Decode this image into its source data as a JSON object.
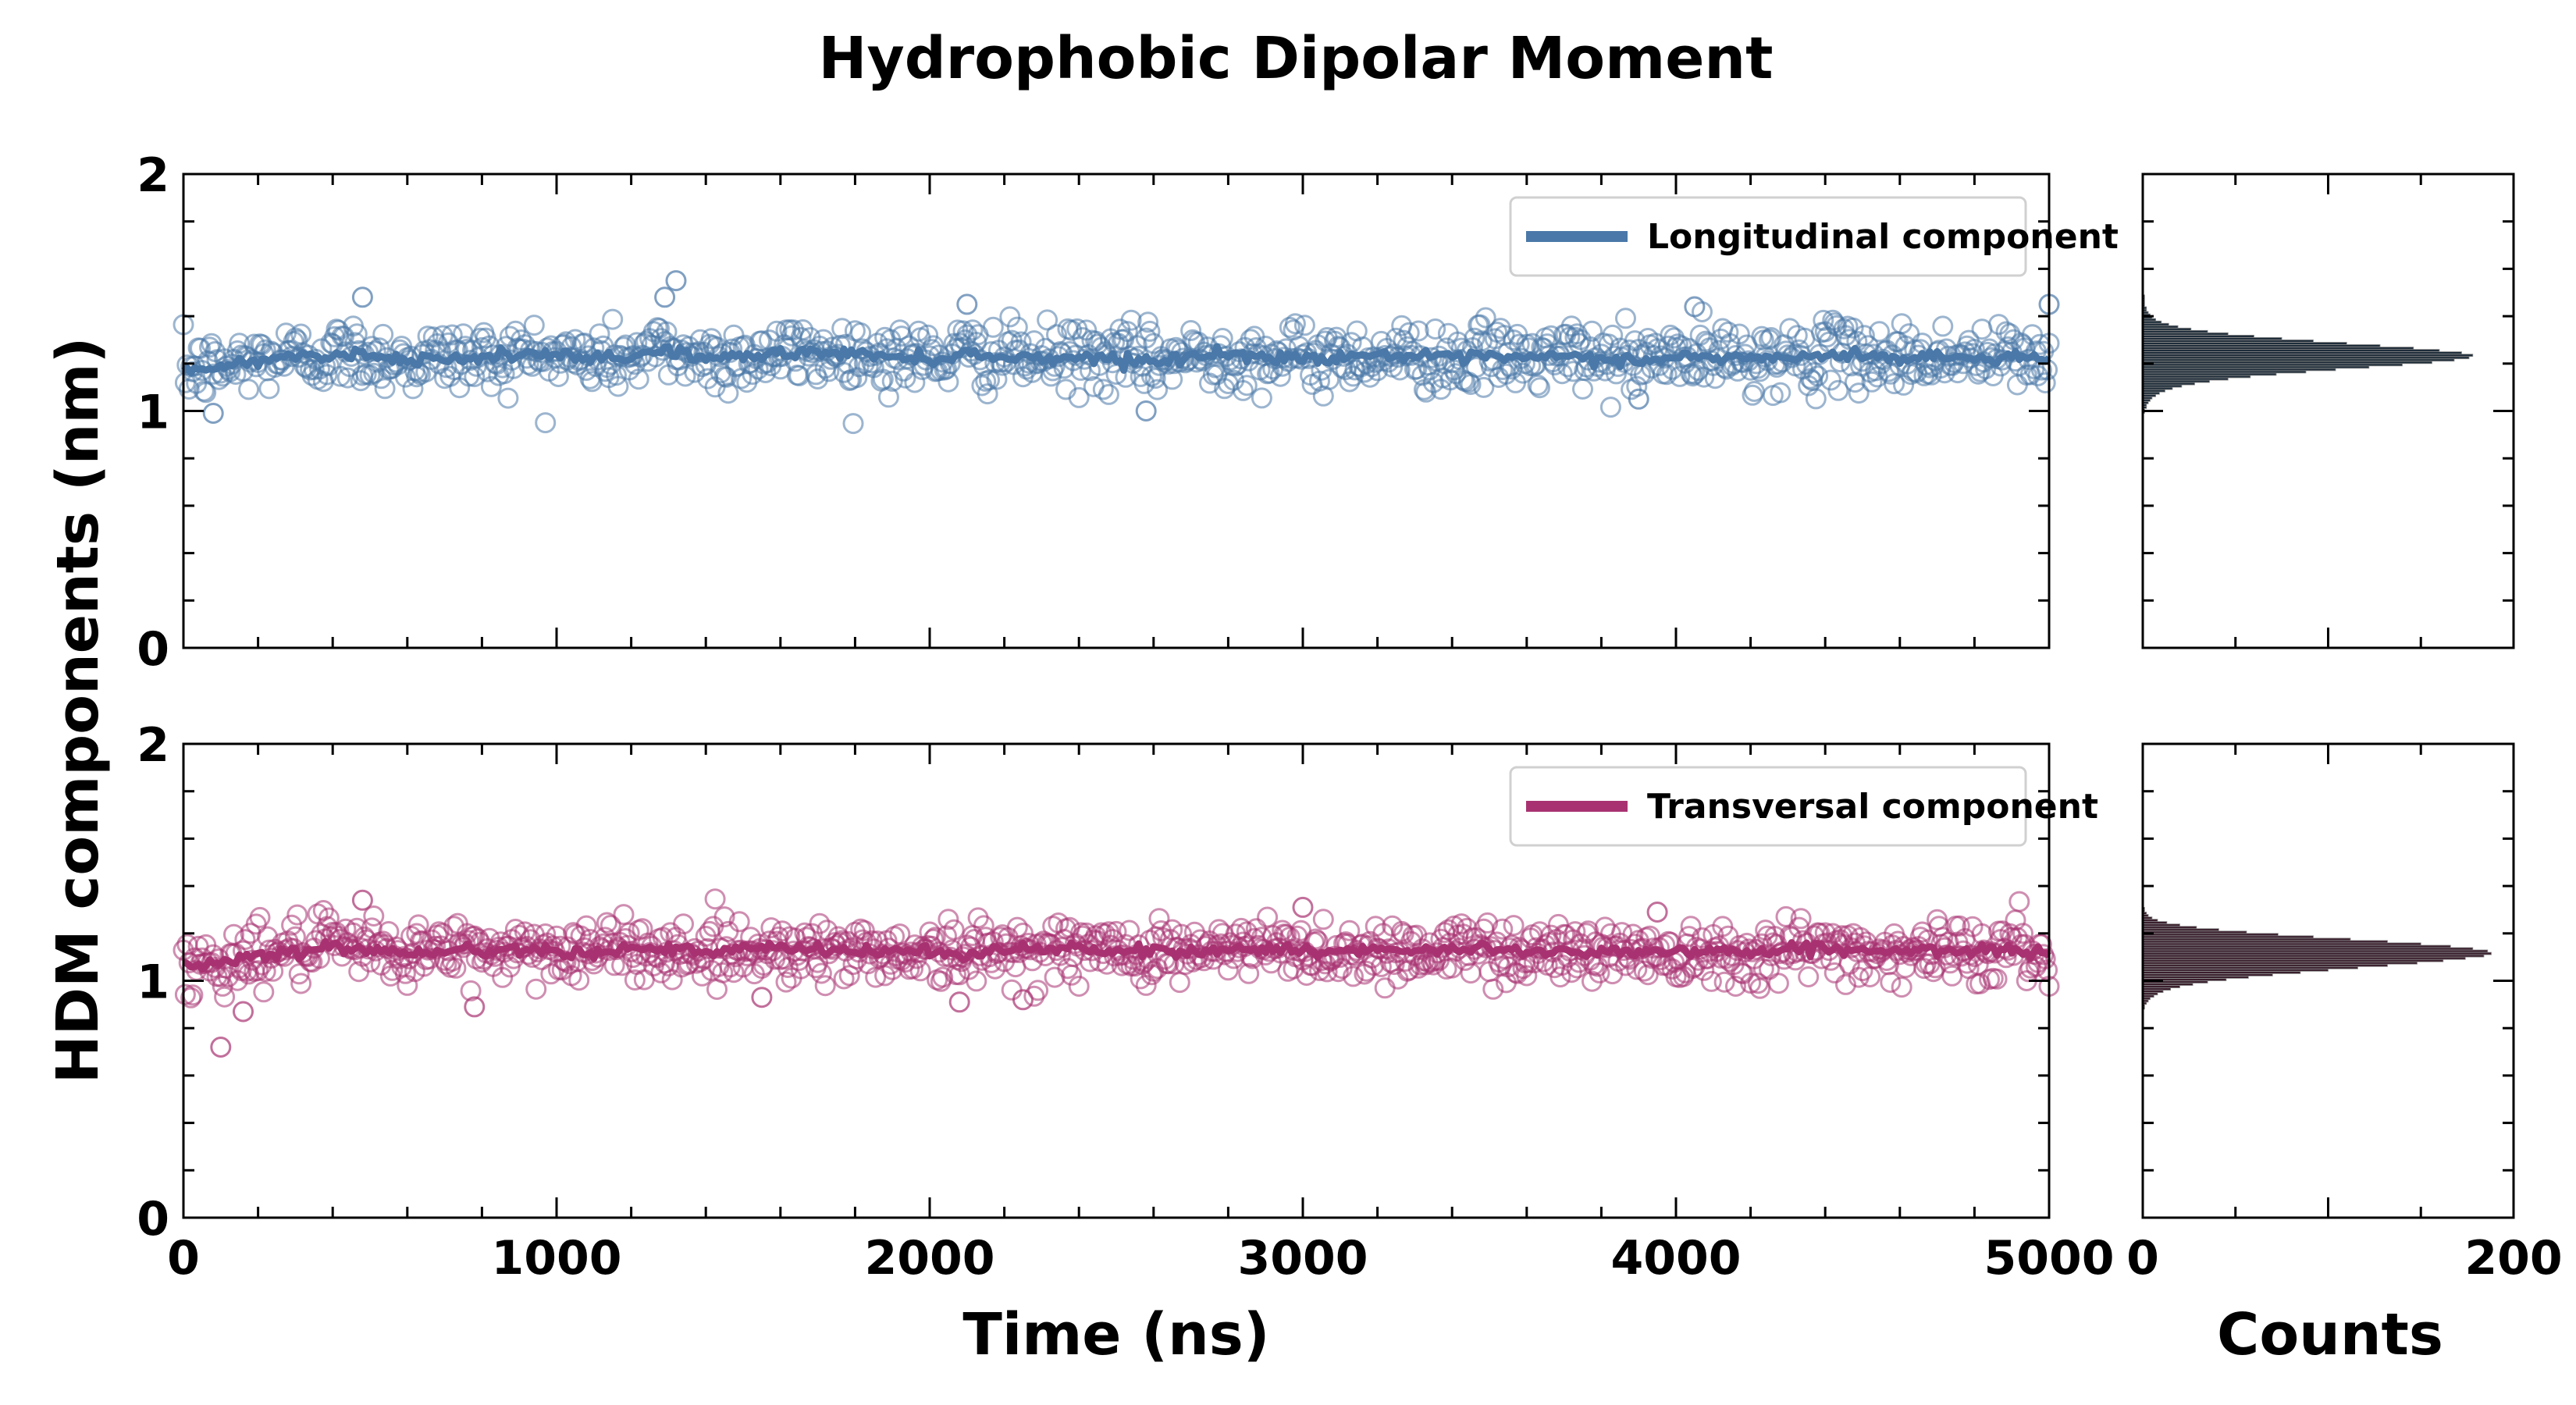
{
  "title": "Hydrophobic Dipolar Moment",
  "chart_data": [
    {
      "type": "scatter",
      "name": "longitudinal-timeseries",
      "xlabel": "Time (ns)",
      "ylabel": "HDM components (nm)",
      "xlim": [
        0,
        5000
      ],
      "ylim": [
        0,
        2
      ],
      "xticks": [
        "0",
        "1000",
        "2000",
        "3000",
        "4000",
        "5000"
      ],
      "yticks": [
        "0",
        "1",
        "2"
      ],
      "legend": "top-right",
      "series": [
        {
          "name": "Longitudinal component",
          "color": "#4a78a8",
          "mean": 1.23,
          "sd": 0.07,
          "line_x": [
            0,
            100,
            200,
            300,
            400,
            500,
            600,
            700,
            800,
            900,
            1000,
            1100,
            1200,
            1300,
            1400,
            1500,
            1600,
            1700,
            1800,
            1900,
            2000,
            2100,
            2200,
            2300,
            2400,
            2500,
            2600,
            2700,
            2800,
            2900,
            3000,
            3100,
            3200,
            3300,
            3400,
            3500,
            3600,
            3700,
            3800,
            3900,
            4000,
            4100,
            4200,
            4300,
            4400,
            4500,
            4600,
            4700,
            4800,
            4900,
            5000
          ],
          "line_y": [
            1.17,
            1.18,
            1.22,
            1.23,
            1.24,
            1.24,
            1.21,
            1.23,
            1.22,
            1.24,
            1.23,
            1.22,
            1.23,
            1.26,
            1.22,
            1.23,
            1.24,
            1.25,
            1.24,
            1.23,
            1.22,
            1.24,
            1.23,
            1.22,
            1.23,
            1.22,
            1.21,
            1.23,
            1.24,
            1.23,
            1.22,
            1.23,
            1.24,
            1.23,
            1.22,
            1.23,
            1.22,
            1.23,
            1.22,
            1.21,
            1.23,
            1.22,
            1.23,
            1.22,
            1.23,
            1.24,
            1.22,
            1.23,
            1.22,
            1.23,
            1.22
          ],
          "outliers": [
            [
              80,
              0.99
            ],
            [
              480,
              1.48
            ],
            [
              1320,
              1.55
            ],
            [
              1290,
              1.48
            ],
            [
              2580,
              1.0
            ],
            [
              2100,
              1.45
            ],
            [
              4050,
              1.44
            ],
            [
              5000,
              1.45
            ],
            [
              3900,
              1.05
            ]
          ]
        }
      ]
    },
    {
      "type": "scatter",
      "name": "transversal-timeseries",
      "xlabel": "Time (ns)",
      "ylabel": "HDM components (nm)",
      "xlim": [
        0,
        5000
      ],
      "ylim": [
        0,
        2
      ],
      "xticks": [
        "0",
        "1000",
        "2000",
        "3000",
        "4000",
        "5000"
      ],
      "yticks": [
        "0",
        "1",
        "2"
      ],
      "legend": "top-right",
      "series": [
        {
          "name": "Transversal component",
          "color": "#a83271",
          "mean": 1.13,
          "sd": 0.065,
          "line_x": [
            0,
            100,
            200,
            300,
            400,
            500,
            600,
            700,
            800,
            900,
            1000,
            1100,
            1200,
            1300,
            1400,
            1500,
            1600,
            1700,
            1800,
            1900,
            2000,
            2100,
            2200,
            2300,
            2400,
            2500,
            2600,
            2700,
            2800,
            2900,
            3000,
            3100,
            3200,
            3300,
            3400,
            3500,
            3600,
            3700,
            3800,
            3900,
            4000,
            4100,
            4200,
            4300,
            4400,
            4500,
            4600,
            4700,
            4800,
            4900,
            5000
          ],
          "line_y": [
            1.06,
            1.08,
            1.11,
            1.13,
            1.14,
            1.13,
            1.12,
            1.13,
            1.12,
            1.14,
            1.13,
            1.12,
            1.14,
            1.13,
            1.12,
            1.13,
            1.14,
            1.13,
            1.12,
            1.13,
            1.12,
            1.11,
            1.13,
            1.14,
            1.13,
            1.12,
            1.13,
            1.12,
            1.13,
            1.14,
            1.13,
            1.12,
            1.13,
            1.12,
            1.13,
            1.14,
            1.12,
            1.13,
            1.12,
            1.13,
            1.12,
            1.13,
            1.12,
            1.13,
            1.14,
            1.13,
            1.12,
            1.13,
            1.12,
            1.13,
            1.11
          ],
          "outliers": [
            [
              100,
              0.72
            ],
            [
              480,
              1.34
            ],
            [
              160,
              0.87
            ],
            [
              780,
              0.89
            ],
            [
              1550,
              0.93
            ],
            [
              2080,
              0.91
            ],
            [
              3000,
              1.31
            ],
            [
              3950,
              1.29
            ],
            [
              2250,
              0.92
            ]
          ]
        }
      ]
    },
    {
      "type": "bar",
      "orientation": "horizontal",
      "name": "longitudinal-histogram",
      "xlabel": "Counts",
      "xlim": [
        0,
        200
      ],
      "ylim": [
        0,
        2
      ],
      "xticks": [
        "0",
        "200"
      ],
      "color": "#1f2d3a",
      "bin_width": 0.01,
      "bins": [
        0.99,
        1.0,
        1.01,
        1.02,
        1.03,
        1.04,
        1.05,
        1.06,
        1.07,
        1.08,
        1.09,
        1.1,
        1.11,
        1.12,
        1.13,
        1.14,
        1.15,
        1.16,
        1.17,
        1.18,
        1.19,
        1.2,
        1.21,
        1.22,
        1.23,
        1.24,
        1.25,
        1.26,
        1.27,
        1.28,
        1.29,
        1.3,
        1.31,
        1.32,
        1.33,
        1.34,
        1.35,
        1.36,
        1.37,
        1.38,
        1.39,
        1.4,
        1.41,
        1.42,
        1.43,
        1.44,
        1.45,
        1.46,
        1.47,
        1.48
      ],
      "values": [
        1,
        1,
        2,
        2,
        3,
        4,
        5,
        7,
        9,
        12,
        16,
        21,
        28,
        36,
        46,
        58,
        72,
        88,
        104,
        122,
        140,
        156,
        168,
        176,
        178,
        172,
        160,
        146,
        128,
        110,
        92,
        75,
        60,
        46,
        35,
        26,
        19,
        14,
        10,
        7,
        5,
        4,
        3,
        2,
        2,
        1,
        1,
        1,
        1,
        1
      ]
    },
    {
      "type": "bar",
      "orientation": "horizontal",
      "name": "transversal-histogram",
      "xlabel": "Counts",
      "xlim": [
        0,
        200
      ],
      "ylim": [
        0,
        2
      ],
      "xticks": [
        "0",
        "200"
      ],
      "color": "#3a1f2d",
      "bin_width": 0.01,
      "bins": [
        0.88,
        0.89,
        0.9,
        0.91,
        0.92,
        0.93,
        0.94,
        0.95,
        0.96,
        0.97,
        0.98,
        0.99,
        1.0,
        1.01,
        1.02,
        1.03,
        1.04,
        1.05,
        1.06,
        1.07,
        1.08,
        1.09,
        1.1,
        1.11,
        1.12,
        1.13,
        1.14,
        1.15,
        1.16,
        1.17,
        1.18,
        1.19,
        1.2,
        1.21,
        1.22,
        1.23,
        1.24,
        1.25,
        1.26,
        1.27,
        1.28,
        1.29,
        1.3
      ],
      "values": [
        1,
        1,
        2,
        3,
        4,
        6,
        8,
        11,
        15,
        20,
        27,
        35,
        45,
        57,
        70,
        85,
        100,
        116,
        132,
        148,
        162,
        174,
        184,
        188,
        186,
        178,
        166,
        150,
        132,
        112,
        92,
        73,
        56,
        41,
        29,
        20,
        13,
        8,
        5,
        3,
        2,
        1,
        1
      ]
    }
  ]
}
